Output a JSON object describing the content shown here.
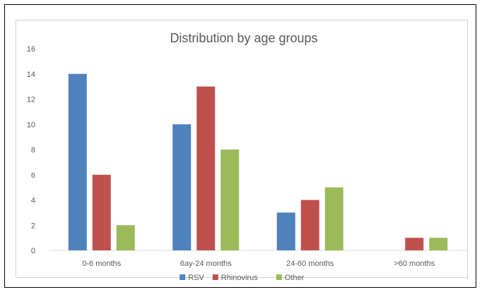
{
  "chart_data": {
    "type": "bar",
    "title": "Distribution by age groups",
    "xlabel": "",
    "ylabel": "",
    "categories": [
      "0-6 months",
      "6ay-24 months",
      "24-60 months",
      ">60 months"
    ],
    "series": [
      {
        "name": "RSV",
        "values": [
          14,
          10,
          3,
          0
        ],
        "color": "#4f81bd"
      },
      {
        "name": "Rhinovirus",
        "values": [
          6,
          13,
          4,
          1
        ],
        "color": "#c0504d"
      },
      {
        "name": "Other",
        "values": [
          2,
          8,
          5,
          1
        ],
        "color": "#9bbb59"
      }
    ],
    "ylim": [
      0,
      16
    ],
    "yticks": [
      0,
      2,
      4,
      6,
      8,
      10,
      12,
      14,
      16
    ],
    "grid": false,
    "legend": "bottom"
  }
}
